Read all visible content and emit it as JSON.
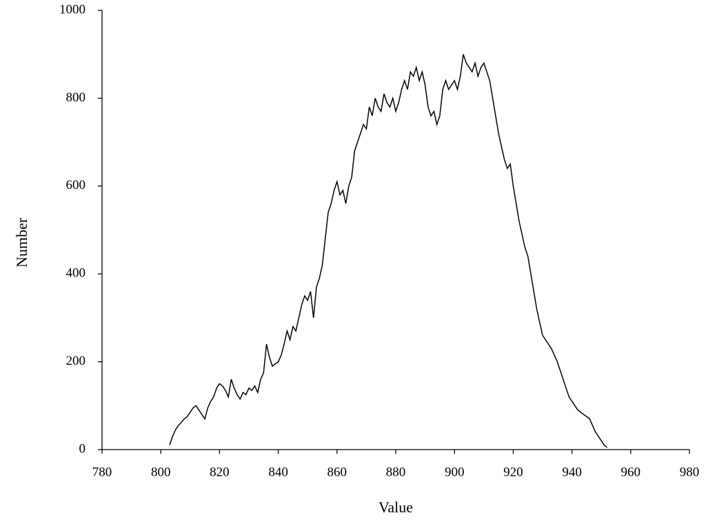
{
  "chart_data": {
    "type": "line",
    "x_label": "Value",
    "y_label": "Number",
    "x": [
      803,
      804,
      805,
      806,
      807,
      808,
      809,
      810,
      811,
      812,
      813,
      814,
      815,
      816,
      817,
      818,
      819,
      820,
      821,
      822,
      823,
      824,
      825,
      826,
      827,
      828,
      829,
      830,
      831,
      832,
      833,
      834,
      835,
      836,
      837,
      838,
      839,
      840,
      841,
      842,
      843,
      844,
      845,
      846,
      847,
      848,
      849,
      850,
      851,
      852,
      853,
      854,
      855,
      856,
      857,
      858,
      859,
      860,
      861,
      862,
      863,
      864,
      865,
      866,
      867,
      868,
      869,
      870,
      871,
      872,
      873,
      874,
      875,
      876,
      877,
      878,
      879,
      880,
      881,
      882,
      883,
      884,
      885,
      886,
      887,
      888,
      889,
      890,
      891,
      892,
      893,
      894,
      895,
      896,
      897,
      898,
      899,
      900,
      901,
      902,
      903,
      904,
      905,
      906,
      907,
      908,
      909,
      910,
      911,
      912,
      913,
      914,
      915,
      916,
      917,
      918,
      919,
      920,
      921,
      922,
      923,
      924,
      925,
      926,
      927,
      928,
      929,
      930,
      931,
      932,
      933,
      934,
      935,
      936,
      937,
      938,
      939,
      940,
      941,
      942,
      943,
      944,
      945,
      946,
      947,
      948,
      949,
      950,
      951,
      952
    ],
    "series": [
      {
        "color": "#000000",
        "values": [
          10,
          30,
          45,
          55,
          62,
          70,
          75,
          85,
          95,
          100,
          90,
          80,
          70,
          95,
          110,
          120,
          140,
          150,
          145,
          135,
          120,
          160,
          140,
          125,
          115,
          130,
          125,
          140,
          135,
          145,
          130,
          160,
          175,
          240,
          210,
          190,
          195,
          200,
          215,
          240,
          270,
          250,
          280,
          270,
          300,
          330,
          350,
          340,
          360,
          300,
          370,
          390,
          420,
          480,
          540,
          560,
          590,
          610,
          580,
          590,
          560,
          600,
          620,
          680,
          700,
          720,
          740,
          730,
          780,
          760,
          800,
          780,
          770,
          810,
          790,
          780,
          800,
          770,
          790,
          820,
          840,
          820,
          860,
          850,
          870,
          840,
          860,
          830,
          780,
          760,
          770,
          740,
          760,
          820,
          840,
          820,
          830,
          840,
          820,
          850,
          900,
          880,
          870,
          860,
          880,
          850,
          870,
          880,
          860,
          840,
          800,
          760,
          720,
          690,
          660,
          640,
          650,
          600,
          560,
          520,
          490,
          460,
          440,
          400,
          360,
          320,
          290,
          260,
          250,
          240,
          230,
          215,
          200,
          180,
          160,
          140,
          120,
          110,
          100,
          90,
          85,
          80,
          75,
          70,
          55,
          40,
          30,
          20,
          10,
          5
        ]
      }
    ],
    "xlim": [
      780,
      980
    ],
    "xticks": [
      780,
      800,
      820,
      840,
      860,
      880,
      900,
      920,
      940,
      960,
      980
    ],
    "ylim": [
      0,
      1000
    ],
    "yticks": [
      0,
      200,
      400,
      600,
      800,
      1000
    ]
  }
}
